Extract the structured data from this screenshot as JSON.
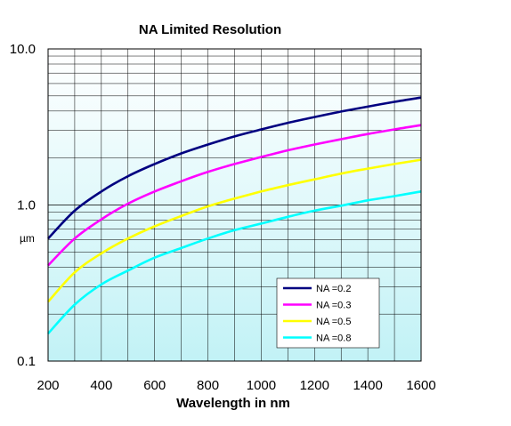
{
  "chart_data": {
    "type": "line",
    "title": "NA Limited Resolution",
    "xlabel": "Wavelength in nm",
    "ylabel": "µm",
    "yscale": "log",
    "xlim": [
      200,
      1600
    ],
    "ylim": [
      0.1,
      10.0
    ],
    "x_ticks": [
      "200",
      "400",
      "600",
      "800",
      "1000",
      "1200",
      "1400",
      "1600"
    ],
    "y_ticks": [
      {
        "value": 0.1,
        "label": "0.1"
      },
      {
        "value": 1.0,
        "label": "1.0"
      },
      {
        "value": 10.0,
        "label": "10.0"
      }
    ],
    "grid": true,
    "legend": "bottom-right",
    "x": [
      200,
      300,
      400,
      500,
      600,
      700,
      800,
      900,
      1000,
      1100,
      1200,
      1300,
      1400,
      1500,
      1600
    ],
    "series": [
      {
        "name": "NA =0.2",
        "color": "#000080",
        "values": [
          0.61,
          0.92,
          1.22,
          1.53,
          1.83,
          2.14,
          2.44,
          2.75,
          3.05,
          3.36,
          3.66,
          3.97,
          4.27,
          4.58,
          4.88
        ]
      },
      {
        "name": "NA =0.3",
        "color": "#ff00ff",
        "values": [
          0.41,
          0.61,
          0.81,
          1.02,
          1.22,
          1.42,
          1.63,
          1.83,
          2.03,
          2.24,
          2.44,
          2.64,
          2.85,
          3.05,
          3.25
        ]
      },
      {
        "name": "NA =0.5",
        "color": "#ffff00",
        "values": [
          0.24,
          0.37,
          0.49,
          0.61,
          0.73,
          0.85,
          0.98,
          1.1,
          1.22,
          1.34,
          1.46,
          1.59,
          1.71,
          1.83,
          1.95
        ]
      },
      {
        "name": "NA =0.8",
        "color": "#00ffff",
        "values": [
          0.15,
          0.23,
          0.31,
          0.38,
          0.46,
          0.53,
          0.61,
          0.69,
          0.76,
          0.84,
          0.92,
          0.99,
          1.07,
          1.14,
          1.22
        ]
      }
    ]
  }
}
